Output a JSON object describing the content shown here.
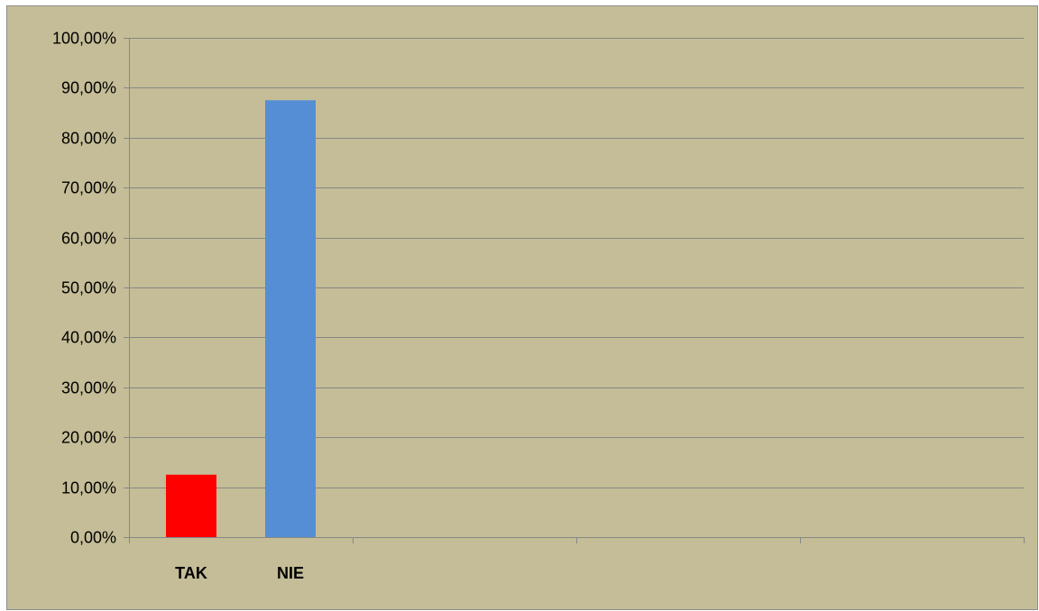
{
  "chart_data": {
    "type": "bar",
    "categories": [
      "TAK",
      "NIE"
    ],
    "values": [
      12.5,
      87.5
    ],
    "bar_colors": [
      "#ff0000",
      "#558ed5"
    ],
    "ylim": [
      0,
      100
    ],
    "y_ticks": [
      0,
      10,
      20,
      30,
      40,
      50,
      60,
      70,
      80,
      90,
      100
    ],
    "y_tick_labels": [
      "0,00%",
      "10,00%",
      "20,00%",
      "30,00%",
      "40,00%",
      "50,00%",
      "60,00%",
      "70,00%",
      "80,00%",
      "90,00%",
      "100,00%"
    ],
    "slot_count": 4,
    "grid": true,
    "legend": "none",
    "background_color": "#c4bd97",
    "gridline_color": "#868686"
  }
}
